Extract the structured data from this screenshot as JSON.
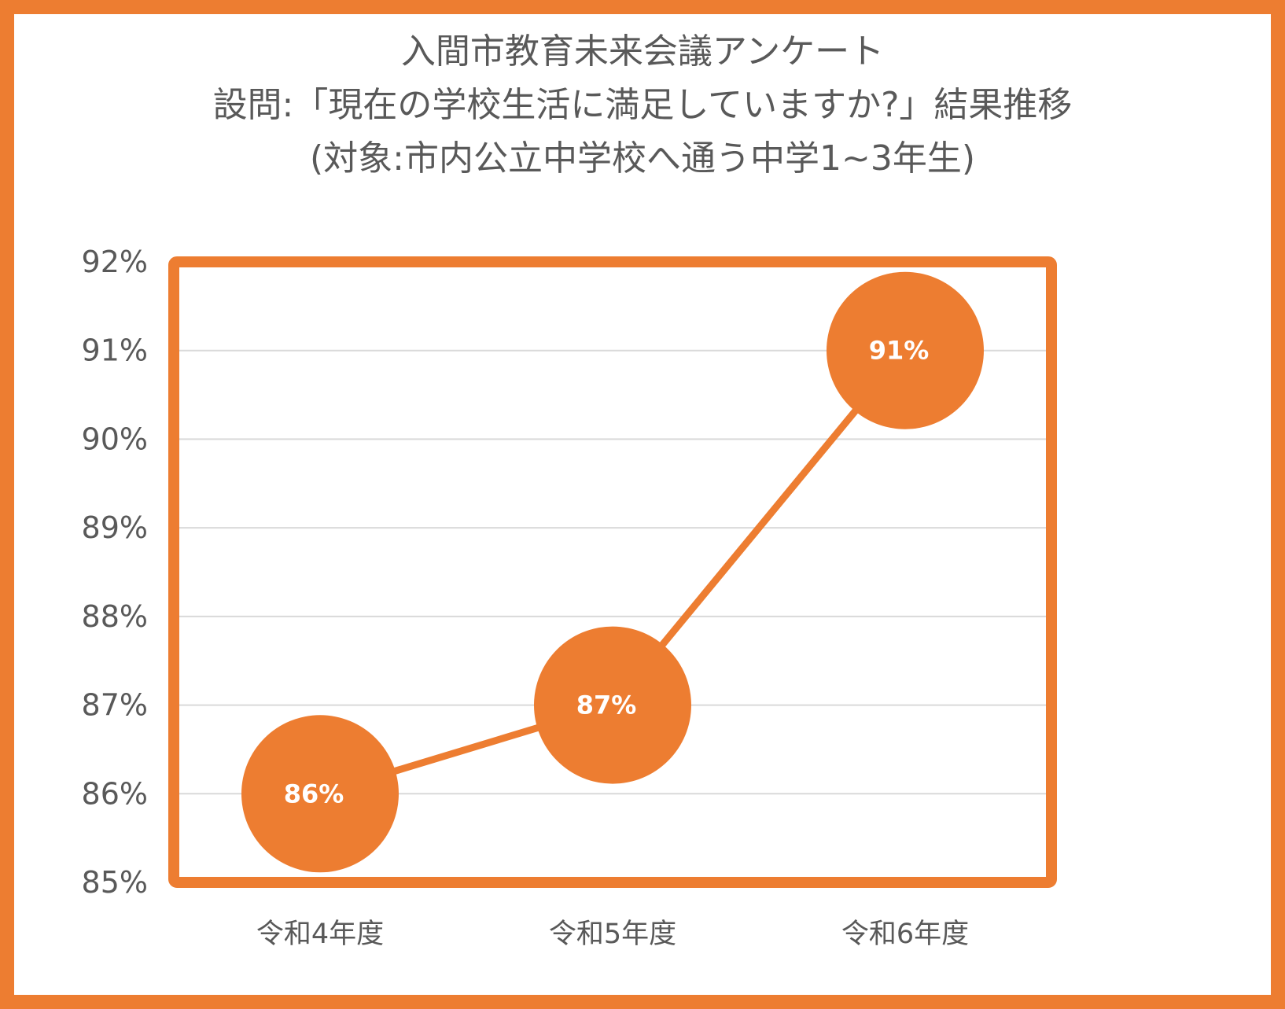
{
  "title": {
    "line1": "入間市教育未来会議アンケート",
    "line2": "設問:「現在の学校生活に満足していますか?」結果推移",
    "line3": "(対象:市内公立中学校へ通う中学1~3年生)"
  },
  "chart_data": {
    "type": "line",
    "categories": [
      "令和4年度",
      "令和5年度",
      "令和6年度"
    ],
    "values": [
      86,
      87,
      91
    ],
    "data_labels": [
      "86%",
      "87%",
      "91%"
    ],
    "ylim": [
      85,
      92
    ],
    "yticks": [
      85,
      86,
      87,
      88,
      89,
      90,
      91,
      92
    ],
    "ytick_labels": [
      "85%",
      "86%",
      "87%",
      "88%",
      "89%",
      "90%",
      "91%",
      "92%"
    ],
    "grid": true,
    "legend": "none",
    "colors": {
      "accent": "#ED7D31",
      "text": "#595959",
      "grid": "#D9D9D9",
      "label": "#FFFFFF"
    }
  }
}
